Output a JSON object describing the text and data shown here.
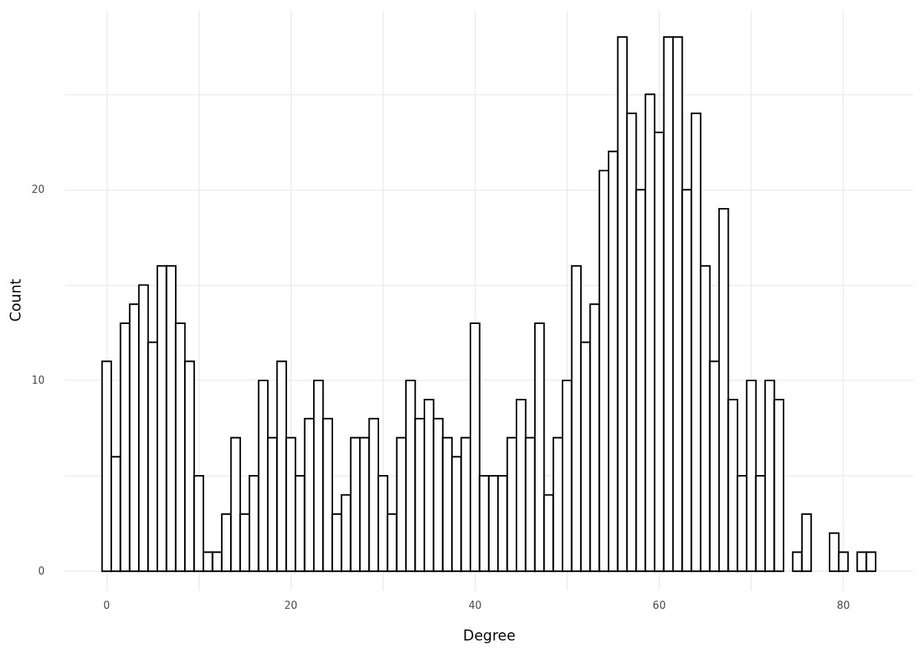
{
  "chart_data": {
    "type": "histogram",
    "xlabel": "Degree",
    "ylabel": "Count",
    "bins": [
      -0.5,
      0.5,
      1.5,
      2.5,
      3.5,
      4.5,
      5.5,
      6.5,
      7.5,
      8.5,
      9.5,
      10.5,
      11.5,
      12.5,
      13.5,
      14.5,
      15.5,
      16.5,
      17.5,
      18.5,
      19.5,
      20.5,
      21.5,
      22.5,
      23.5,
      24.5,
      25.5,
      26.5,
      27.5,
      28.5,
      29.5,
      30.5,
      31.5,
      32.5,
      33.5,
      34.5,
      35.5,
      36.5,
      37.5,
      38.5,
      39.5,
      40.5,
      41.5,
      42.5,
      43.5,
      44.5,
      45.5,
      46.5,
      47.5,
      48.5,
      49.5,
      50.5,
      51.5,
      52.5,
      53.5,
      54.5,
      55.5,
      56.5,
      57.5,
      58.5,
      59.5,
      60.5,
      61.5,
      62.5,
      63.5,
      64.5,
      65.5,
      66.5,
      67.5,
      68.5,
      69.5,
      70.5,
      71.5,
      72.5,
      73.5,
      74.5,
      75.5,
      76.5,
      77.5,
      78.5,
      79.5,
      80.5,
      81.5,
      82.5,
      83.5
    ],
    "values": [
      11,
      6,
      13,
      14,
      15,
      12,
      16,
      16,
      13,
      11,
      5,
      1,
      1,
      3,
      7,
      3,
      5,
      10,
      7,
      11,
      7,
      5,
      8,
      10,
      8,
      3,
      4,
      7,
      7,
      8,
      5,
      3,
      7,
      10,
      8,
      9,
      8,
      7,
      6,
      7,
      13,
      5,
      5,
      5,
      7,
      9,
      7,
      13,
      4,
      7,
      10,
      16,
      12,
      14,
      21,
      22,
      28,
      24,
      20,
      25,
      23,
      28,
      28,
      20,
      24,
      16,
      11,
      19,
      9,
      5,
      10,
      5,
      10,
      9,
      0,
      1,
      3,
      0,
      0,
      2,
      1,
      0,
      1,
      1
    ],
    "color": "#ffffff",
    "xlim": [
      -4.5,
      87.6
    ],
    "ylim": [
      -1.0,
      29.4
    ],
    "xticks": [
      0,
      {
        "value": 10,
        "label": null
      },
      20,
      {
        "value": 30,
        "label": null
      },
      40,
      {
        "value": 50,
        "label": null
      },
      60,
      {
        "value": 70,
        "label": null
      },
      80
    ],
    "yticks": [
      0,
      {
        "value": 5,
        "label": null
      },
      10,
      {
        "value": 15,
        "label": null
      },
      20,
      {
        "value": 25,
        "label": null
      }
    ],
    "grid": true
  }
}
